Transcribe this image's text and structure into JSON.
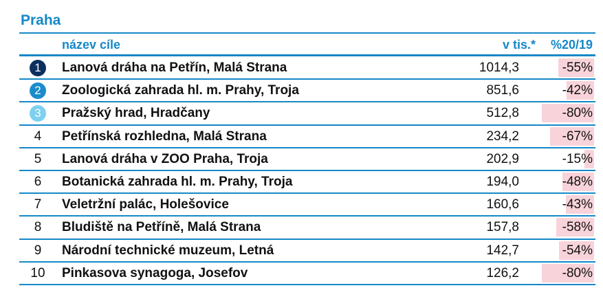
{
  "header": {
    "title": "Praha"
  },
  "table": {
    "columns": [
      "název cíle",
      "v tis.*",
      "%20/19"
    ],
    "rows": [
      {
        "rank": 1,
        "name": "Lanová dráha na Petřín, Malá Strana",
        "visitors": "1014,3",
        "change": -55,
        "change_label": "-55%"
      },
      {
        "rank": 2,
        "name": "Zoologická zahrada hl. m. Prahy, Troja",
        "visitors": "851,6",
        "change": -42,
        "change_label": "-42%"
      },
      {
        "rank": 3,
        "name": "Pražský hrad, Hradčany",
        "visitors": "512,8",
        "change": -80,
        "change_label": "-80%"
      },
      {
        "rank": 4,
        "name": "Petřínská rozhledna, Malá Strana",
        "visitors": "234,2",
        "change": -67,
        "change_label": "-67%"
      },
      {
        "rank": 5,
        "name": "Lanová dráha v ZOO Praha, Troja",
        "visitors": "202,9",
        "change": -15,
        "change_label": "-15%"
      },
      {
        "rank": 6,
        "name": "Botanická zahrada hl. m. Prahy, Troja",
        "visitors": "194,0",
        "change": -48,
        "change_label": "-48%"
      },
      {
        "rank": 7,
        "name": "Veletržní palác, Holešovice",
        "visitors": "160,6",
        "change": -43,
        "change_label": "-43%"
      },
      {
        "rank": 8,
        "name": "Bludiště na Petříně, Malá Strana",
        "visitors": "157,8",
        "change": -58,
        "change_label": "-58%"
      },
      {
        "rank": 9,
        "name": "Národní technické muzeum, Letná",
        "visitors": "142,7",
        "change": -54,
        "change_label": "-54%"
      },
      {
        "rank": 10,
        "name": "Pinkasova synagoga, Josefov",
        "visitors": "126,2",
        "change": -80,
        "change_label": "-80%"
      }
    ]
  }
}
